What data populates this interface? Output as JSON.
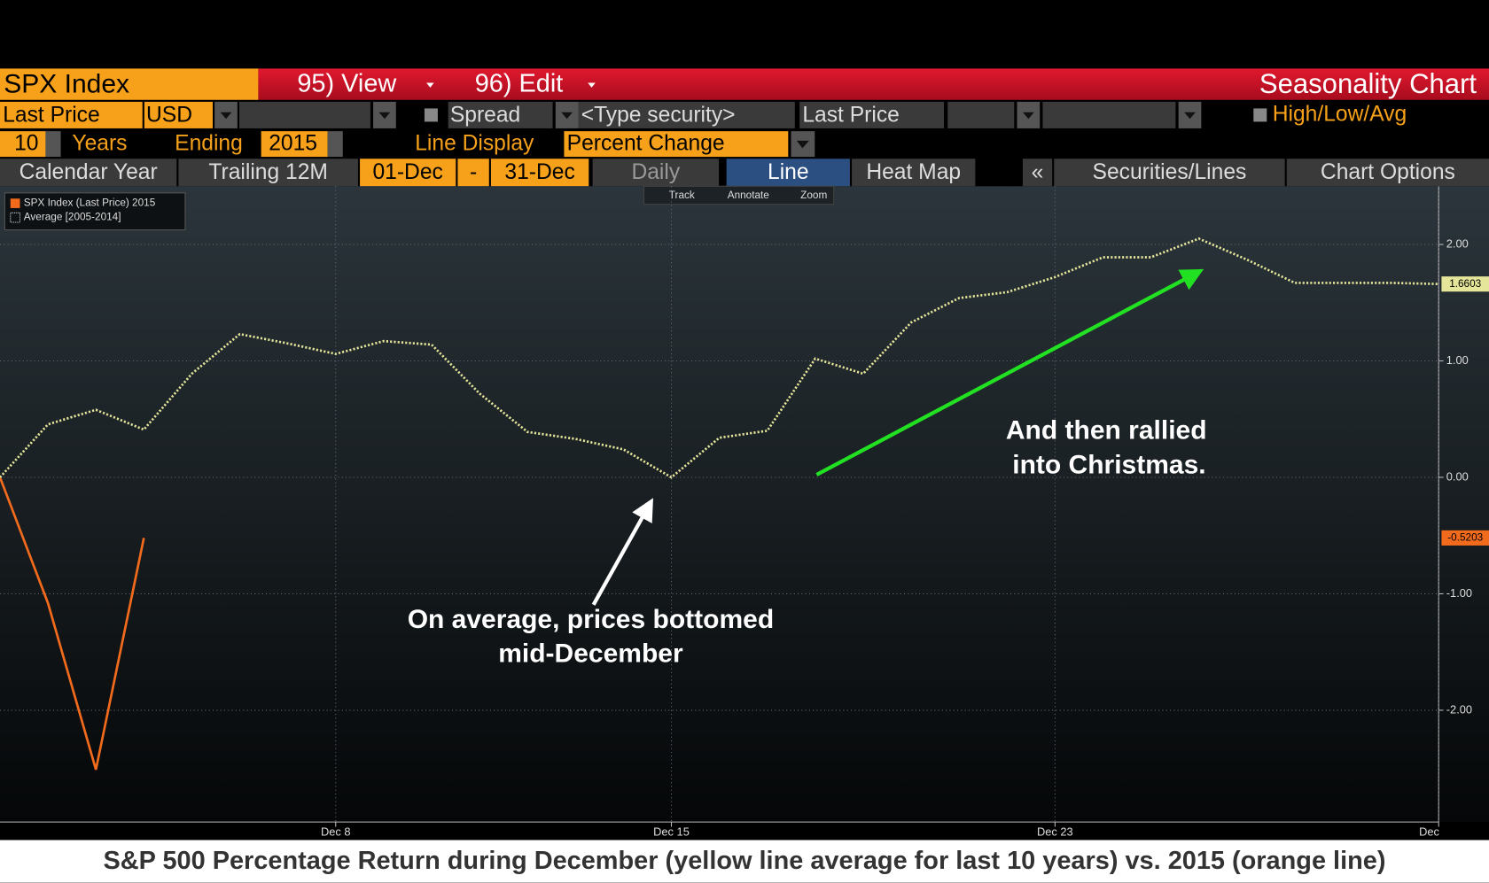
{
  "toolbar": {
    "security": "SPX Index",
    "view": "95) View",
    "edit": "96) Edit",
    "screen_title": "Seasonality Chart",
    "field": "Last Price",
    "currency": "USD",
    "spread": "Spread",
    "type_security": "<Type security>",
    "field2": "Last Price",
    "high_low_avg": "High/Low/Avg",
    "years_count": "10",
    "years": "Years",
    "ending": "Ending",
    "ending_year": "2015",
    "line_display": "Line Display",
    "line_display_value": "Percent Change",
    "tabs": [
      "Calendar Year",
      "Trailing 12M",
      "01-Dec",
      "-",
      "31-Dec",
      "Daily",
      "Line",
      "Heat Map",
      "«",
      "Securities/Lines",
      "Chart Options"
    ],
    "chart_tools": [
      "Track",
      "Annotate",
      "Zoom"
    ],
    "caption": "S&P 500 Percentage Return during December (yellow line average for last 10 years) vs. 2015 (orange line)"
  },
  "chart_data": {
    "type": "line",
    "x": [
      1,
      2,
      3,
      4,
      5,
      6,
      7,
      8,
      9,
      10,
      11,
      12,
      13,
      14,
      15,
      16,
      17,
      18,
      19,
      20,
      21,
      22,
      23,
      24,
      25,
      26,
      27,
      28,
      29,
      30,
      31
    ],
    "series": [
      {
        "name": "SPX Index (Last Price) 2015",
        "color": "#f26b1d",
        "values": [
          0,
          -1.08,
          -2.51,
          -0.5203,
          null,
          null,
          null,
          null,
          null,
          null,
          null,
          null,
          null,
          null,
          null,
          null,
          null,
          null,
          null,
          null,
          null,
          null,
          null,
          null,
          null,
          null,
          null,
          null,
          null,
          null,
          null
        ]
      },
      {
        "name": "Average [2005-2014]",
        "color": "#e6e69a",
        "values": [
          0,
          0.455,
          0.58,
          0.41,
          0.89,
          1.23,
          1.15,
          1.06,
          1.17,
          1.14,
          0.72,
          0.39,
          0.33,
          0.24,
          0,
          0.34,
          0.4,
          1.02,
          0.89,
          1.33,
          1.54,
          1.59,
          1.72,
          1.89,
          1.89,
          2.05,
          1.87,
          1.67,
          1.67,
          1.67,
          1.6603
        ]
      }
    ],
    "xlim": [
      1,
      31
    ],
    "xticks": [
      {
        "value": 8,
        "label": "Dec 8"
      },
      {
        "value": 15,
        "label": "Dec 15"
      },
      {
        "value": 23,
        "label": "Dec 23"
      },
      {
        "value": 31,
        "label": "Dec"
      }
    ],
    "ylim": [
      -2.96,
      2.5
    ],
    "yticks": [
      {
        "value": -2,
        "label": "-2.00"
      },
      {
        "value": -1,
        "label": "-1.00"
      },
      {
        "value": 0,
        "label": "0.00"
      },
      {
        "value": 1,
        "label": "1.00"
      },
      {
        "value": 2,
        "label": "2.00"
      }
    ],
    "grid": true,
    "annotations": [
      "On average, prices bottomed",
      "mid-December",
      "And then rallied",
      "into Christmas."
    ]
  }
}
